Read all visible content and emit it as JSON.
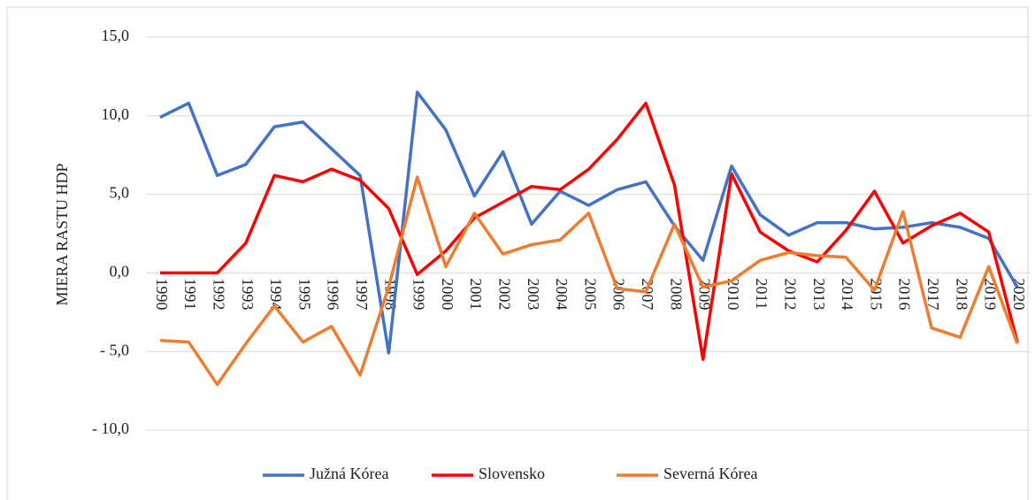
{
  "chart_data": {
    "type": "line",
    "y_label": "MIERA RASTU HDP",
    "categories": [
      "1990",
      "1991",
      "1992",
      "1993",
      "1994",
      "1995",
      "1996",
      "1997",
      "1998",
      "1999",
      "2000",
      "2001",
      "2002",
      "2003",
      "2004",
      "2005",
      "2006",
      "2007",
      "2008",
      "2009",
      "2010",
      "2011",
      "2012",
      "2013",
      "2014",
      "2015",
      "2016",
      "2017",
      "2018",
      "2019",
      "2020"
    ],
    "series": [
      {
        "name": "Južná Kórea",
        "color": "#4472c4",
        "values": [
          9.9,
          10.8,
          6.2,
          6.9,
          9.3,
          9.6,
          7.9,
          6.2,
          -5.1,
          11.5,
          9.1,
          4.9,
          7.7,
          3.1,
          5.2,
          4.3,
          5.3,
          5.8,
          3.0,
          0.8,
          6.8,
          3.7,
          2.4,
          3.2,
          3.2,
          2.8,
          2.9,
          3.2,
          2.9,
          2.2,
          -0.9
        ]
      },
      {
        "name": "Slovensko",
        "color": "#ff0000",
        "values": [
          0,
          0,
          0,
          1.9,
          6.2,
          5.8,
          6.6,
          5.9,
          4.1,
          -0.1,
          1.4,
          3.5,
          4.5,
          5.5,
          5.3,
          6.6,
          8.5,
          10.8,
          5.6,
          -5.5,
          6.3,
          2.6,
          1.4,
          0.7,
          2.7,
          5.2,
          1.9,
          3.0,
          3.8,
          2.6,
          -4.4
        ]
      },
      {
        "name": "Severná Kórea",
        "color": "#ed7d31",
        "values": [
          -4.3,
          -4.4,
          -7.1,
          -4.5,
          -2.1,
          -4.4,
          -3.4,
          -6.5,
          -0.9,
          6.1,
          0.4,
          3.8,
          1.2,
          1.8,
          2.1,
          3.8,
          -1.0,
          -1.2,
          3.1,
          -0.9,
          -0.5,
          0.8,
          1.3,
          1.1,
          1.0,
          -1.1,
          3.9,
          -3.5,
          -4.1,
          0.4,
          -4.5
        ]
      }
    ],
    "ylim": [
      -12.5,
      15
    ],
    "yticks": [
      {
        "value": 15,
        "label": "15,0"
      },
      {
        "value": 10,
        "label": "10,0"
      },
      {
        "value": 5,
        "label": "5,0"
      },
      {
        "value": 0,
        "label": "0,0"
      },
      {
        "value": -5,
        "label": "-   5,0"
      },
      {
        "value": -10,
        "label": "-   10,0"
      }
    ],
    "grid": true,
    "legend": "bottom"
  }
}
